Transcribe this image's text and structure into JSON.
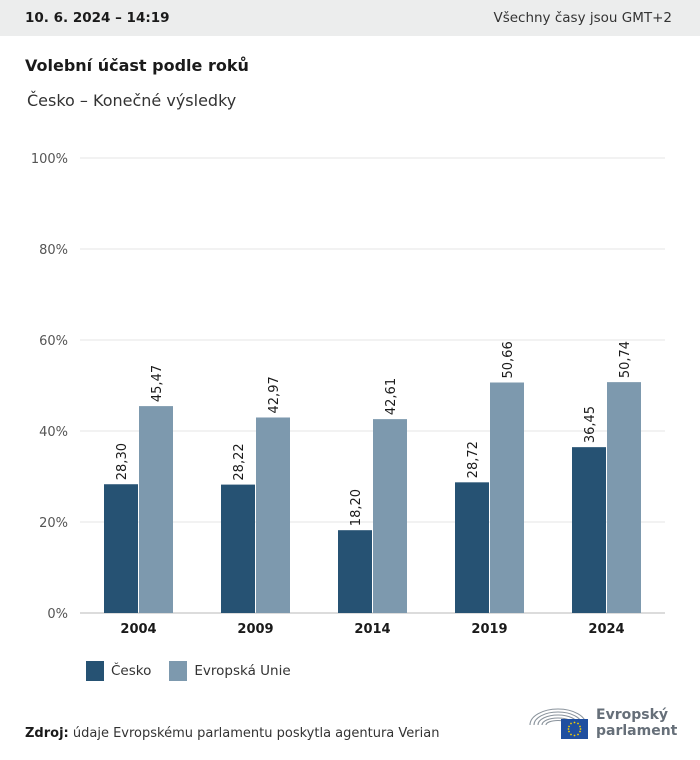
{
  "header": {
    "date": "10. 6. 2024 – 14:19",
    "timezone": "Všechny časy jsou GMT+2"
  },
  "title": "Volební účast podle roků",
  "subtitle": "Česko – Konečné výsledky",
  "colors": {
    "cesko": "#265273",
    "eu": "#7d99ae",
    "grid": "#e6e6e6",
    "axis": "#b9b9b9"
  },
  "chart_data": {
    "type": "bar",
    "categories": [
      "2004",
      "2009",
      "2014",
      "2019",
      "2024"
    ],
    "series": [
      {
        "name": "Česko",
        "values": [
          28.3,
          28.22,
          18.2,
          28.72,
          36.45
        ],
        "labels": [
          "28,30",
          "28,22",
          "18,20",
          "28,72",
          "36,45"
        ]
      },
      {
        "name": "Evropská Unie",
        "values": [
          45.47,
          42.97,
          42.61,
          50.66,
          50.74
        ],
        "labels": [
          "45,47",
          "42,97",
          "42,61",
          "50,66",
          "50,74"
        ]
      }
    ],
    "ylim": [
      0,
      100
    ],
    "yticks": [
      0,
      20,
      40,
      60,
      80,
      100
    ],
    "ytick_labels": [
      "0%",
      "20%",
      "40%",
      "60%",
      "80%",
      "100%"
    ],
    "grid": true,
    "legend_position": "bottom-left"
  },
  "legend": {
    "cesko": "Česko",
    "eu": "Evropská Unie"
  },
  "source": {
    "label": "Zdroj:",
    "text": "údaje Evropskému parlamentu poskytla agentura Verian"
  },
  "logo": {
    "line1": "Evropský",
    "line2": "parlament",
    "icon": "european-parliament-logo-icon"
  }
}
